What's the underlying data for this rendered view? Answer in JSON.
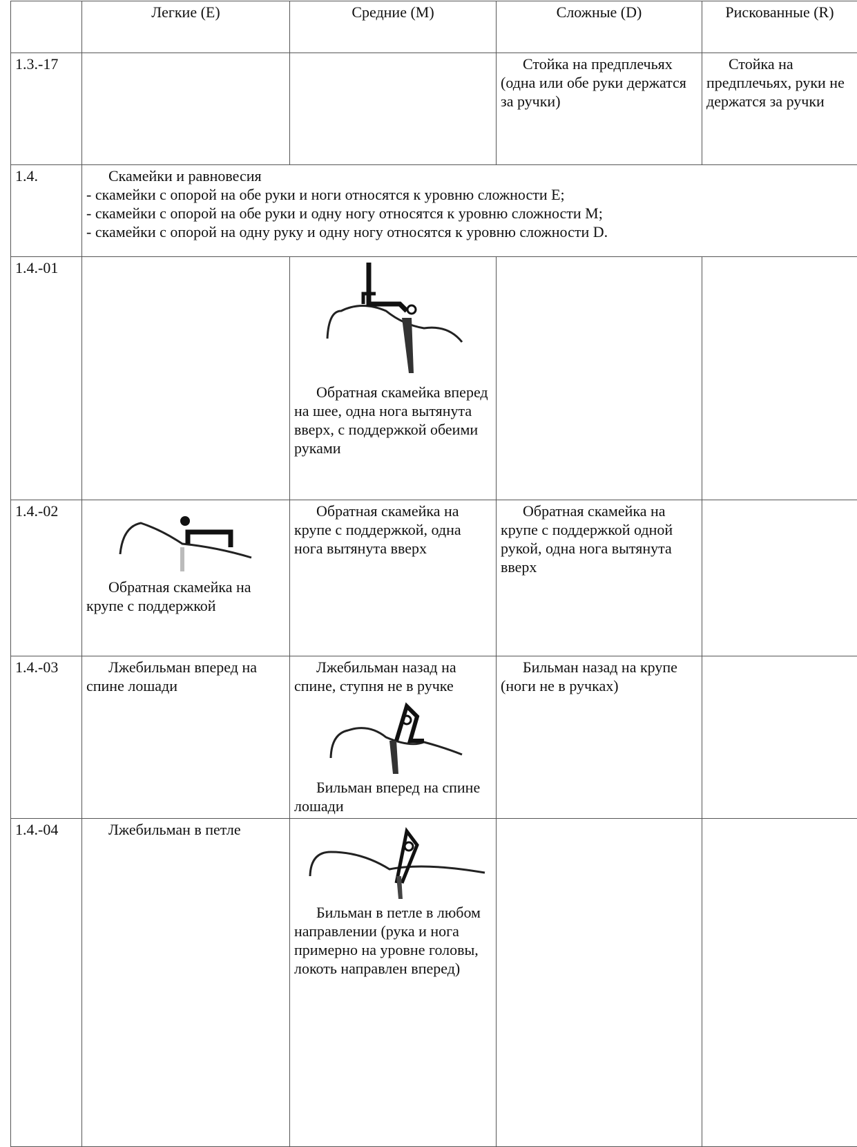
{
  "header": {
    "columns": [
      "Легкие (E)",
      "Средние (M)",
      "Сложные (D)",
      "Рискованные (R)"
    ]
  },
  "rows": [
    {
      "id": "1.3.-17",
      "d": "Стойка на предплечьях (одна или обе руки держатся за ручки)",
      "r": "Стойка на предплечьях, руки не держатся за ручки"
    },
    {
      "id": "1.4.",
      "title": "Скамейки и равновесия",
      "notes": [
        "- скамейки с опорой на обе руки и ноги относятся к уровню сложности E;",
        "- скамейки с опорой на обе руки и одну ногу относятся к уровню сложности M;",
        "- скамейки с опорой на одну руку и одну ногу относятся к уровню сложности D."
      ]
    },
    {
      "id": "1.4.-01",
      "m": "Обратная скамейка вперед на шее, одна нога вытянута вверх, с поддержкой обеими руками"
    },
    {
      "id": "1.4.-02",
      "e": "Обратная скамейка на крупе с поддержкой",
      "m": "Обратная скамейка на крупе с поддержкой, одна нога вытянута вверх",
      "d": "Обратная скамейка на крупе с поддержкой одной рукой, одна нога вытянута вверх"
    },
    {
      "id": "1.4.-03",
      "e": "Лжебильман вперед на спине лошади",
      "m_text": "Лжебильман назад на спине, ступня не в ручке",
      "m_caption": "Бильман вперед на спине лошади",
      "d": "Бильман назад на крупе (ноги не в ручках)"
    },
    {
      "id": "1.4.-04",
      "e": "Лжебильман в петле",
      "m": "Бильман в петле в любом направлении (рука и нога примерно на уровне головы, локоть направлен вперед)"
    }
  ]
}
